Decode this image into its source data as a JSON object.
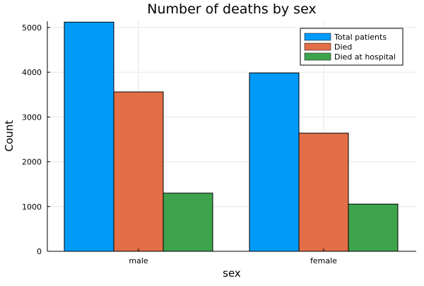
{
  "chart_data": {
    "type": "bar",
    "title": "Number of deaths by sex",
    "xlabel": "sex",
    "ylabel": "Count",
    "categories": [
      "male",
      "female"
    ],
    "series": [
      {
        "name": "Total patients",
        "color": "#009AF9",
        "values": [
          5120,
          3985
        ]
      },
      {
        "name": "Died",
        "color": "#E26F46",
        "values": [
          3560,
          2640
        ]
      },
      {
        "name": "Died at hospital",
        "color": "#3DA44D",
        "values": [
          1300,
          1055
        ]
      }
    ],
    "ylim": [
      0,
      5140
    ],
    "yticks": [
      0,
      1000,
      2000,
      3000,
      4000,
      5000
    ],
    "grid": true,
    "legend_position": "top-right"
  }
}
